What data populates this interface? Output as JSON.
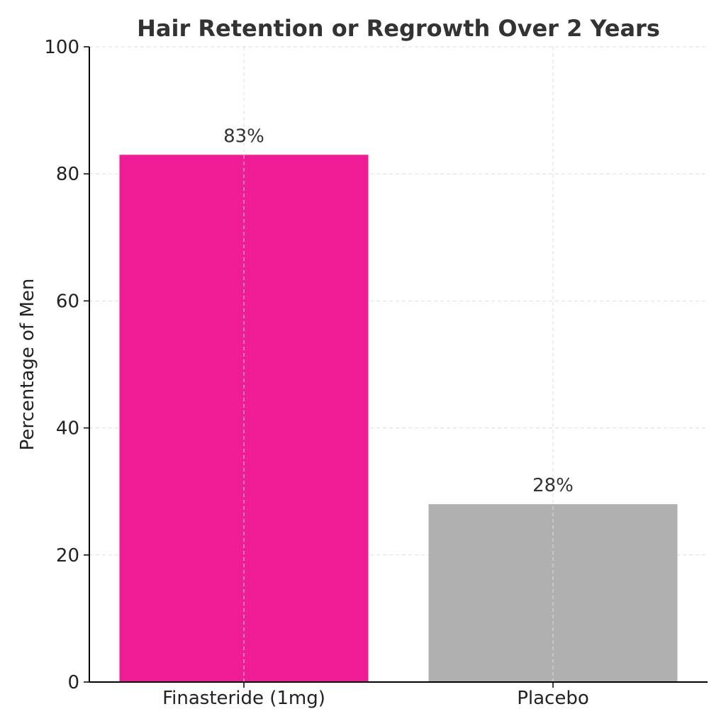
{
  "chart_data": {
    "type": "bar",
    "title": "Hair Retention or Regrowth Over 2 Years",
    "xlabel": "",
    "ylabel": "Percentage of Men",
    "categories": [
      "Finasteride (1mg)",
      "Placebo"
    ],
    "values": [
      83,
      28
    ],
    "data_labels": [
      "83%",
      "28%"
    ],
    "colors": [
      "#f01c96",
      "#b0b0b0"
    ],
    "ylim": [
      0,
      100
    ],
    "yticks": [
      0,
      20,
      40,
      60,
      80,
      100
    ],
    "ytick_labels": [
      "0",
      "20",
      "40",
      "60",
      "80",
      "100"
    ],
    "grid": true,
    "legend": false
  }
}
